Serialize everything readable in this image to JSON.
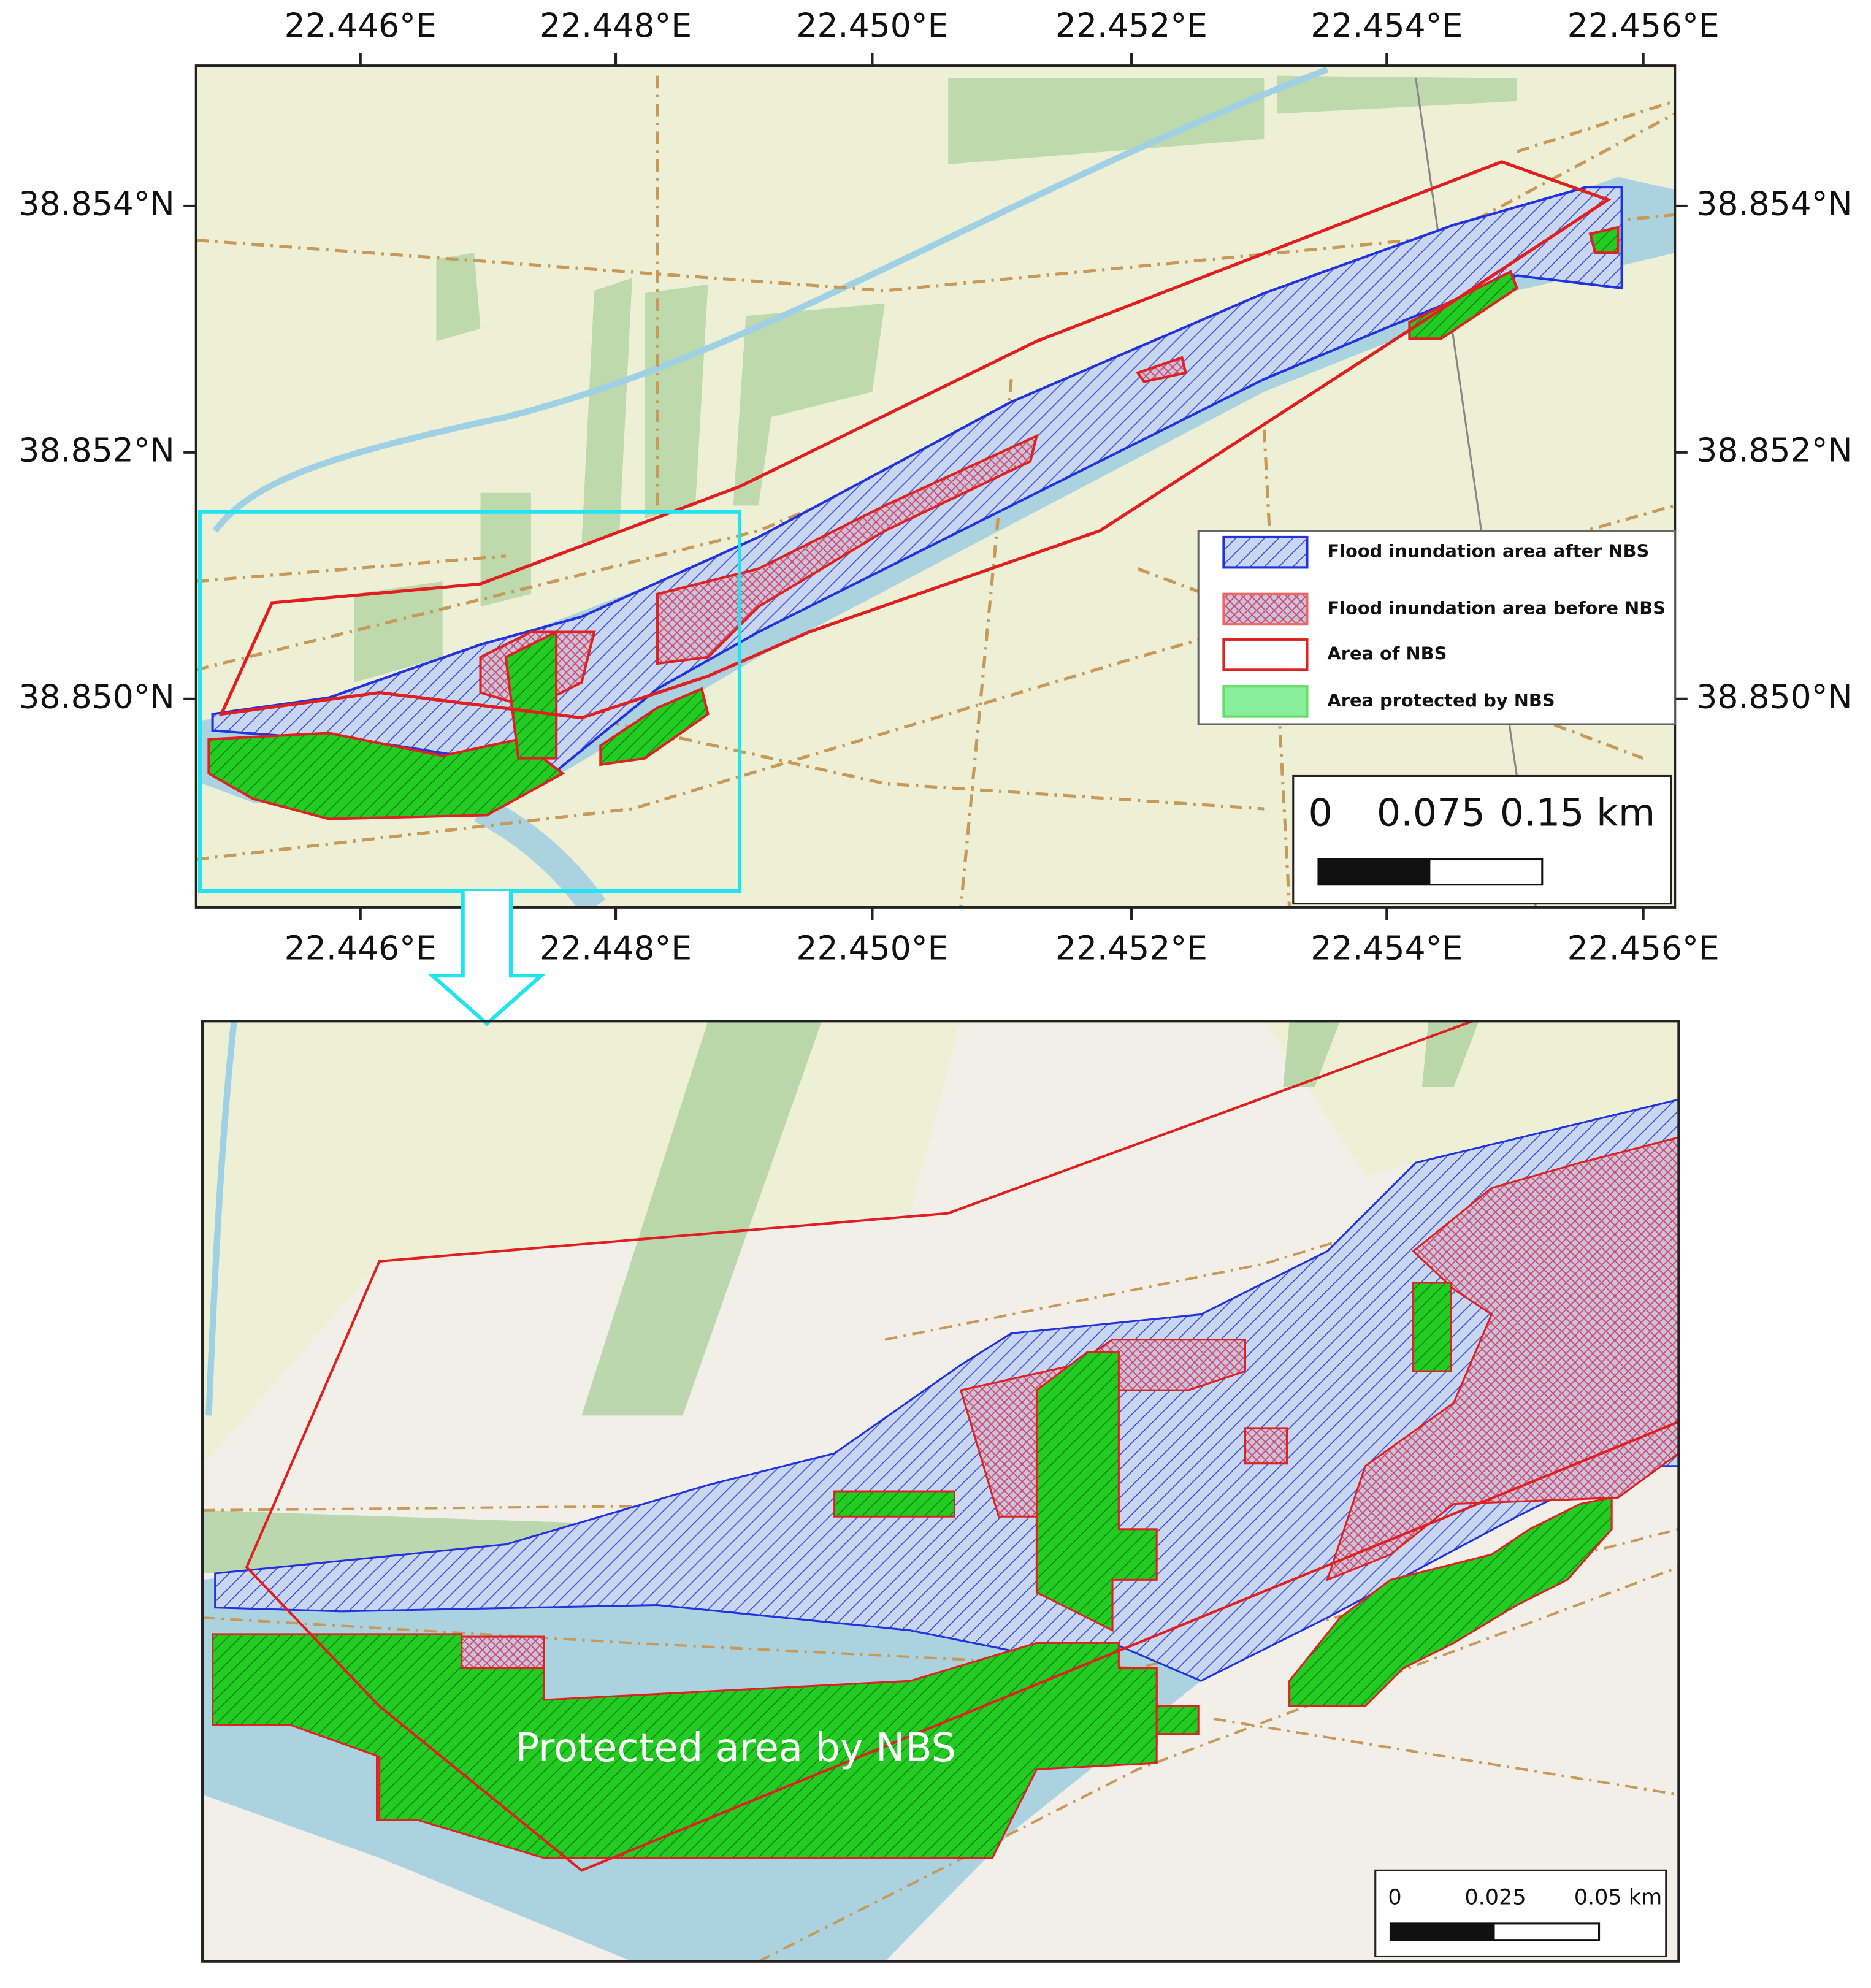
{
  "top_map": {
    "x_labels": [
      "22.446°E",
      "22.448°E",
      "22.450°E",
      "22.452°E",
      "22.454°E",
      "22.456°E"
    ],
    "y_labels": [
      "38.854°N",
      "38.852°N",
      "38.850°N"
    ],
    "legend": [
      "Flood inundation area after NBS",
      "Flood inundation area before NBS",
      "Area of NBS",
      "Area protected by NBS"
    ],
    "scale_bar": [
      "0",
      "0.075",
      "0.15 km"
    ]
  },
  "bottom_map": {
    "annotation": "Protected area by NBS",
    "scale_bar": [
      "0",
      "0.025",
      "0.05 km"
    ]
  }
}
